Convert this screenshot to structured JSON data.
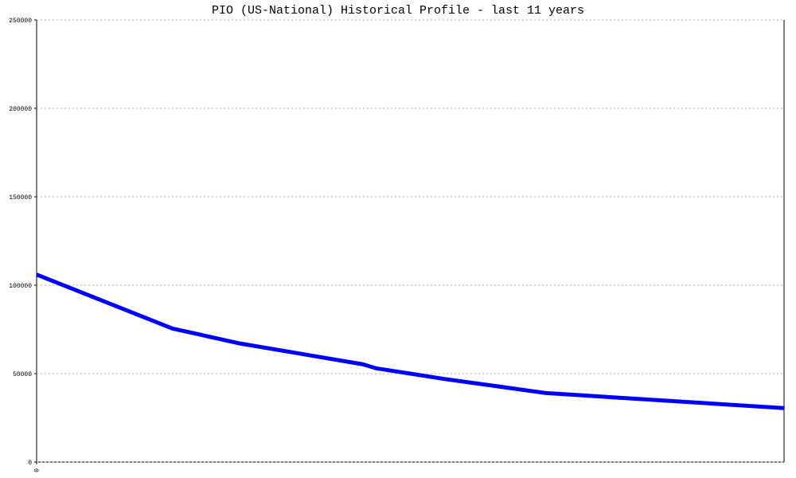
{
  "chart_data": {
    "type": "line",
    "title": "PIO (US-National) Historical Profile - last 11 years",
    "x": [
      0,
      2,
      3,
      4.8,
      5,
      6,
      7.5,
      11
    ],
    "series": [
      {
        "color": "#0000ff",
        "values": [
          106000,
          75500,
          67000,
          55300,
          53000,
          47000,
          39000,
          30500
        ]
      }
    ],
    "xlim": [
      0,
      11
    ],
    "xticks": [
      0
    ],
    "ylim": [
      0,
      250000
    ],
    "yticks": [
      0,
      50000,
      100000,
      150000,
      200000,
      250000
    ],
    "grid": true
  }
}
